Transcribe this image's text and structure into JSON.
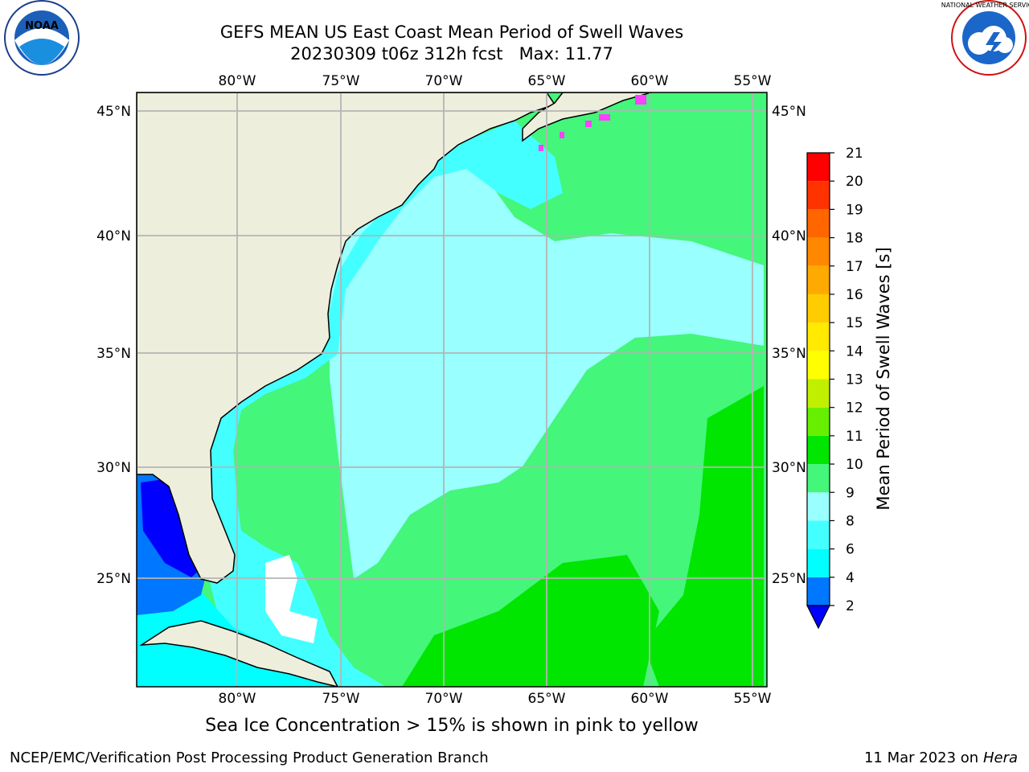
{
  "title": {
    "line1": "GEFS MEAN US East Coast Mean Period of Swell Waves",
    "line2": "20230309 t06z 312h fcst   Max: 11.77"
  },
  "footer": {
    "note": "Sea Ice Concentration > 15% is shown in pink to yellow",
    "credit": "NCEP/EMC/Verification Post Processing Product Generation Branch",
    "date": "11 Mar 2023 on",
    "host": "Hera"
  },
  "logos": {
    "noaa_text": "NOAA",
    "noaa_ring": "NATIONAL OCEANIC AND ATMOSPHERIC ADMINISTRATION · U.S. DEPARTMENT OF COMMERCE",
    "nws_ring": "NATIONAL WEATHER SERVICE"
  },
  "map": {
    "lon_labels": [
      "80°W",
      "75°W",
      "70°W",
      "65°W",
      "60°W",
      "55°W"
    ],
    "lat_labels": [
      "45°N",
      "40°N",
      "35°N",
      "30°N",
      "25°N"
    ],
    "colors": {
      "land": "#eeeedd",
      "gridline": "#b4b4b4",
      "coast": "#000000",
      "ice": "#ff40ff"
    }
  },
  "colorbar": {
    "label": "Mean Period of Swell Waves [s]",
    "ticks": [
      "2",
      "4",
      "6",
      "8",
      "9",
      "10",
      "11",
      "12",
      "13",
      "14",
      "15",
      "16",
      "17",
      "18",
      "19",
      "20",
      "21"
    ],
    "colors": [
      "#0077ff",
      "#00ffff",
      "#44ffff",
      "#99ffff",
      "#44f67a",
      "#00e600",
      "#66f000",
      "#c0f000",
      "#ffff00",
      "#ffea00",
      "#ffcc00",
      "#ffaa00",
      "#ff8800",
      "#ff6600",
      "#ff3300",
      "#ff0000"
    ],
    "extend_color": "#0000ff"
  }
}
